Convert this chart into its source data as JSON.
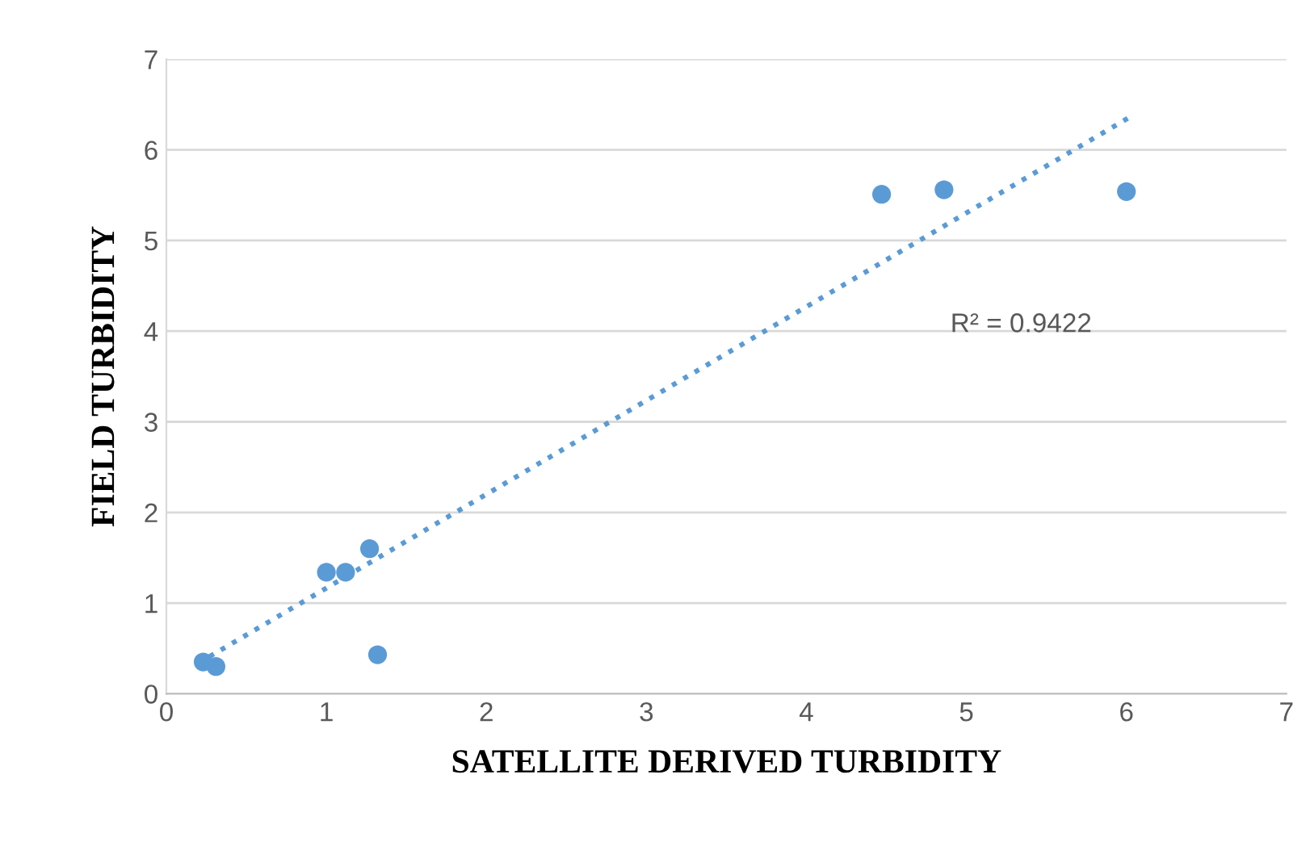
{
  "chart_data": {
    "type": "scatter",
    "xlabel": "SATELLITE DERIVED TURBIDITY",
    "ylabel": "FIELD TURBIDITY",
    "xlim": [
      0,
      7
    ],
    "ylim": [
      0,
      7
    ],
    "xticks": [
      0,
      1,
      2,
      3,
      4,
      5,
      6,
      7
    ],
    "yticks": [
      0,
      1,
      2,
      3,
      4,
      5,
      6,
      7
    ],
    "grid": "y",
    "legend": false,
    "series": [
      {
        "color": "#5b9bd5",
        "marker": "circle",
        "x": [
          0.23,
          0.31,
          1.0,
          1.12,
          1.27,
          1.32,
          4.47,
          4.86,
          6.0
        ],
        "values": [
          0.35,
          0.3,
          1.34,
          1.34,
          1.6,
          0.43,
          5.51,
          5.56,
          5.54
        ]
      },
      {
        "type": "line",
        "color": "#5b9bd5",
        "line_style": "dotted",
        "marker": "none",
        "x": [
          0.27,
          6.02
        ],
        "values": [
          0.41,
          6.36
        ]
      }
    ],
    "annotations": [
      "R² = 0.9422"
    ]
  }
}
